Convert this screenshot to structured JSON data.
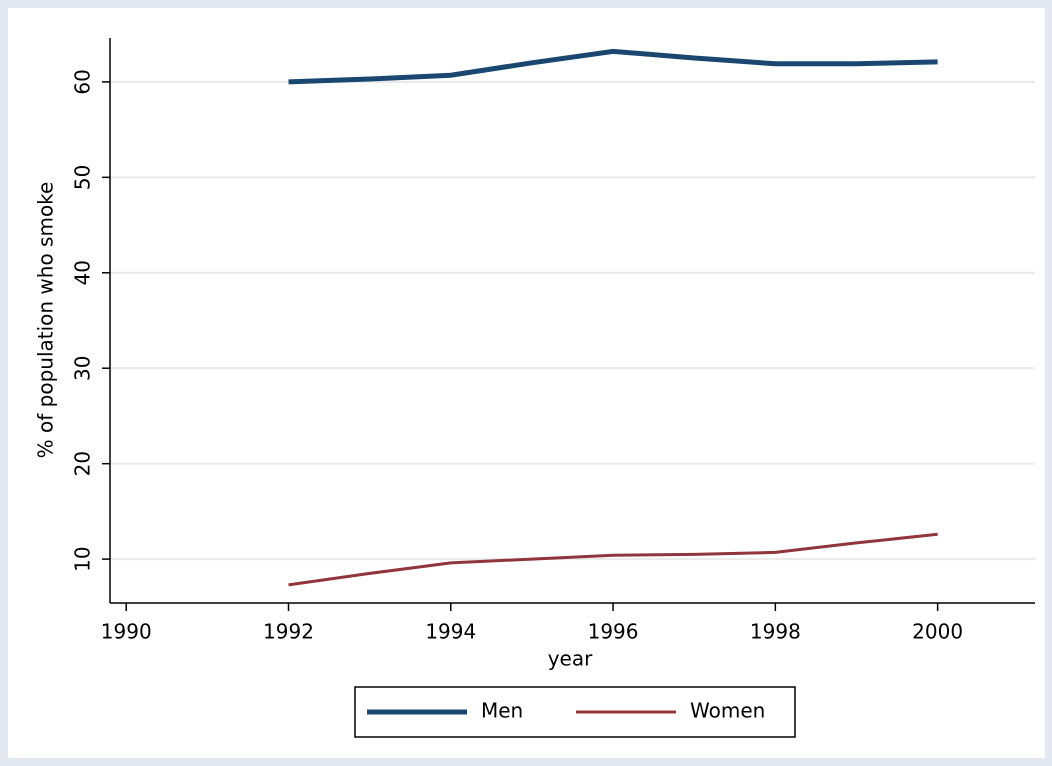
{
  "chart_data": {
    "type": "line",
    "y_label": "% of population who smoke",
    "x_label": "year",
    "x": [
      1992,
      1993,
      1994,
      1995,
      1996,
      1997,
      1998,
      1999,
      2000
    ],
    "series": [
      {
        "name": "Men",
        "color": "#1a476f",
        "values": [
          60.0,
          60.3,
          60.7,
          62.0,
          63.2,
          62.5,
          61.9,
          61.9,
          62.1
        ]
      },
      {
        "name": "Women",
        "color": "#90353b",
        "values": [
          7.3,
          8.5,
          9.6,
          10.0,
          10.4,
          10.5,
          10.7,
          11.7,
          12.6
        ]
      }
    ],
    "xlim": [
      1989.8,
      2001.2
    ],
    "xticks": [
      1990,
      1992,
      1994,
      1996,
      1998,
      2000
    ],
    "ylim": [
      5.4,
      64.6
    ],
    "yticks": [
      10,
      20,
      30,
      40,
      50,
      60
    ],
    "grid": true,
    "legend": "bottom"
  }
}
